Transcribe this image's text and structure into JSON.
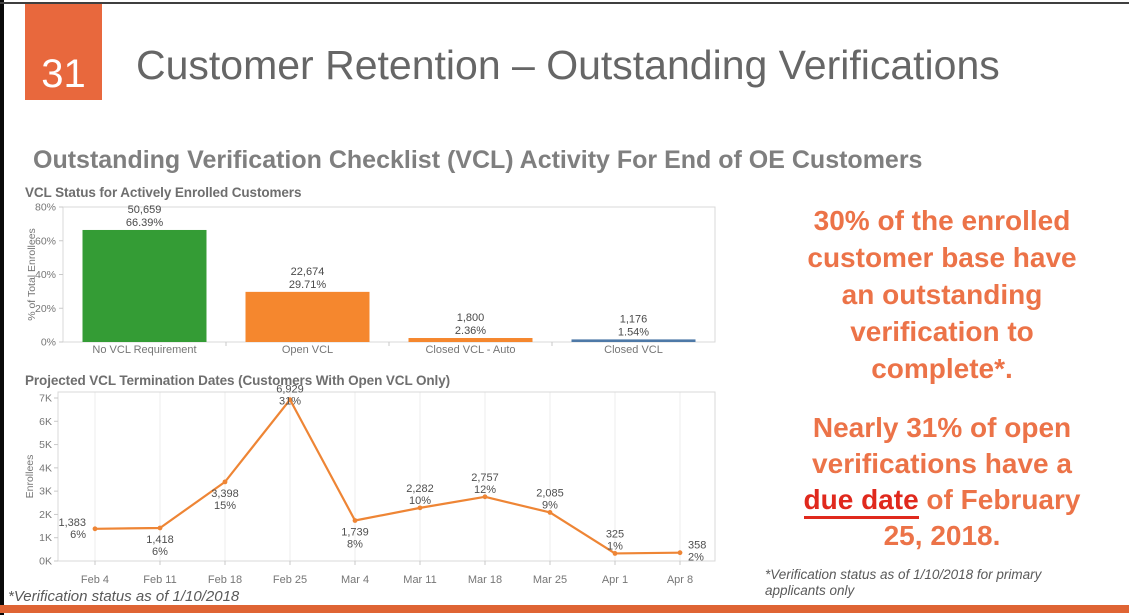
{
  "slide": {
    "number": "31",
    "title": "Customer Retention – Outstanding Verifications",
    "section_heading": "Outstanding Verification Checklist (VCL) Activity For End of OE Customers",
    "footnote_left": "*Verification status as of 1/10/2018",
    "footnote_right": "*Verification status as of 1/10/2018 for primary applicants only"
  },
  "callouts": {
    "first": {
      "full_text": "30% of the enrolled customer base have an outstanding verification to complete*.",
      "line1": "30% of the enrolled",
      "line2": "customer base have",
      "line3": "an outstanding",
      "line4": "verification to",
      "line5": "complete*."
    },
    "second": {
      "full_text": "Nearly 31% of open verifications have a due date of February 25, 2018.",
      "line1": "Nearly 31% of open",
      "line2": "verifications have a",
      "highlight": "due date",
      "line3_rest": " of February",
      "line4": "25, 2018."
    }
  },
  "colors": {
    "accent_orange": "#e8683d",
    "bottom_bar_orange": "#df6434",
    "callout_orange": "#ec7348",
    "highlight_red": "#e0291d",
    "bar_green": "#349c35",
    "bar_orange": "#f5872e",
    "bar_blue": "#4e79a7",
    "line_orange": "#ee8535"
  },
  "chart_data": [
    {
      "type": "bar",
      "title": "VCL Status for Actively Enrolled Customers",
      "xlabel": "",
      "ylabel": "% of Total Enrollees",
      "ylim": [
        0,
        80
      ],
      "yticks": [
        "0%",
        "20%",
        "40%",
        "60%",
        "80%"
      ],
      "categories": [
        "No VCL Requirement",
        "Open VCL",
        "Closed VCL - Auto",
        "Closed VCL"
      ],
      "values_pct": [
        66.39,
        29.71,
        2.36,
        1.54
      ],
      "counts": [
        "50,659",
        "22,674",
        "1,800",
        "1,176"
      ],
      "pct_labels": [
        "66.39%",
        "29.71%",
        "2.36%",
        "1.54%"
      ],
      "bar_colors": [
        "#349c35",
        "#f5872e",
        "#f5872e",
        "#4e79a7"
      ],
      "grid": "off",
      "legend": "none"
    },
    {
      "type": "line",
      "title": "Projected VCL Termination Dates (Customers With Open VCL Only)",
      "xlabel": "",
      "ylabel": "Enrollees",
      "ylim": [
        0,
        7000
      ],
      "yticks": [
        "0K",
        "1K",
        "2K",
        "3K",
        "4K",
        "5K",
        "6K",
        "7K"
      ],
      "categories": [
        "Feb 4",
        "Feb 11",
        "Feb 18",
        "Feb 25",
        "Mar 4",
        "Mar 11",
        "Mar 18",
        "Mar 25",
        "Apr 1",
        "Apr 8"
      ],
      "values": [
        1383,
        1418,
        3398,
        6929,
        1739,
        2282,
        2757,
        2085,
        325,
        358
      ],
      "count_labels": [
        "1,383",
        "1,418",
        "3,398",
        "6,929",
        "1,739",
        "2,282",
        "2,757",
        "2,085",
        "325",
        "358"
      ],
      "pct_labels": [
        "6%",
        "6%",
        "15%",
        "31%",
        "8%",
        "10%",
        "12%",
        "9%",
        "1%",
        "2%"
      ],
      "label_positions": [
        "left",
        "below",
        "below",
        "peak",
        "below",
        "above",
        "above",
        "above",
        "above",
        "right"
      ],
      "line_color": "#ee8535",
      "grid": "vertical",
      "legend": "none"
    }
  ]
}
